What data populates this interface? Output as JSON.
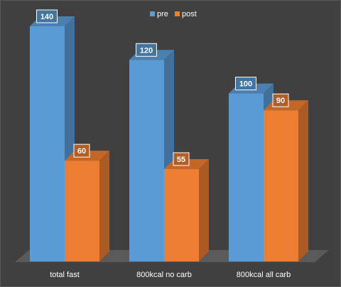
{
  "chart_data": {
    "type": "bar",
    "categories": [
      "total fast",
      "800kcal no carb",
      "800kcal all carb"
    ],
    "series": [
      {
        "name": "pre",
        "values": [
          140,
          120,
          100
        ]
      },
      {
        "name": "post",
        "values": [
          60,
          55,
          90
        ]
      }
    ],
    "ylim": [
      0,
      140
    ],
    "legend_position": "top-center",
    "grid": false,
    "colors": {
      "pre": "#5b9bd5",
      "post": "#ed7d31",
      "background": "#404040",
      "text": "#ffffff"
    }
  }
}
